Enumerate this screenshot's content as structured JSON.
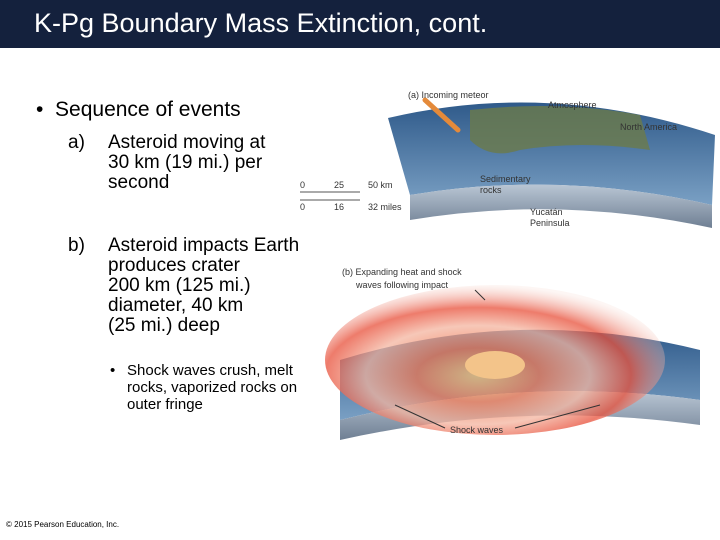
{
  "header": {
    "title": "K-Pg Boundary Mass Extinction, cont."
  },
  "body": {
    "bullet": "Sequence of events",
    "items": [
      {
        "marker": "a)",
        "lines": [
          "Asteroid moving at",
          "30 km (19 mi.) per",
          "second"
        ]
      },
      {
        "marker": "b)",
        "lines": [
          "Asteroid impacts Earth",
          "produces crater",
          "200 km (125 mi.)",
          "diameter, 40 km",
          "(25 mi.) deep"
        ]
      }
    ],
    "sub_bullet": {
      "lines": [
        "Shock waves crush, melt",
        "rocks, vaporized rocks on",
        "outer fringe"
      ]
    }
  },
  "figure_a": {
    "caption": "(a) Incoming meteor",
    "labels": [
      "Atmosphere",
      "North America",
      "Sedimentary",
      "rocks",
      "Yucatán",
      "Peninsula"
    ],
    "scale_km": [
      "0",
      "25",
      "50 km"
    ],
    "scale_miles": [
      "0",
      "16",
      "32 miles"
    ]
  },
  "figure_b": {
    "caption": [
      "(b) Expanding heat and shock",
      "waves following impact"
    ],
    "label": "Shock waves"
  },
  "footer": {
    "copyright": "© 2015 Pearson Education, Inc."
  }
}
